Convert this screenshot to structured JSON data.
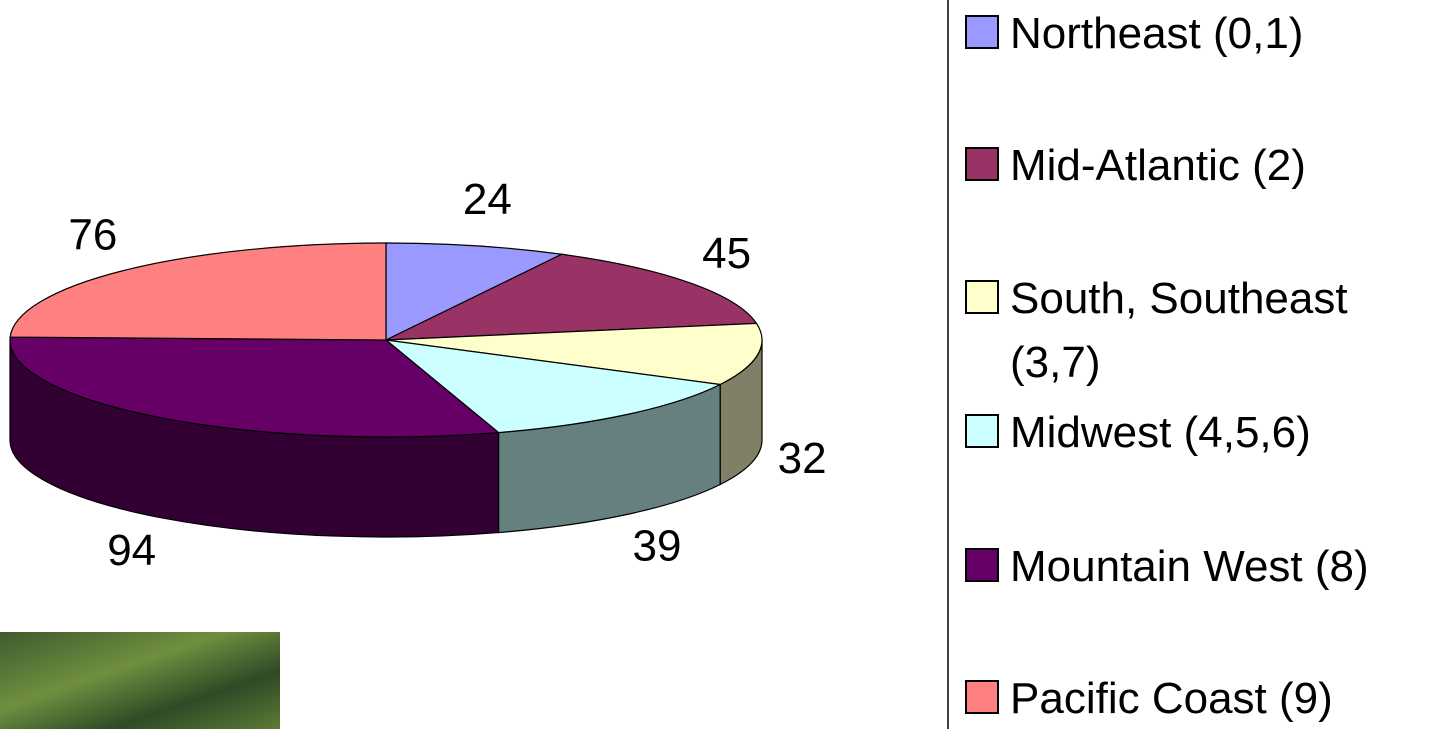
{
  "chart_data": {
    "type": "pie3d",
    "categories": [
      "Northeast (0,1)",
      "Mid-Atlantic (2)",
      "South, Southeast (3,7)",
      "Midwest (4,5,6)",
      "Mountain West (8)",
      "Pacific Coast (9)"
    ],
    "values": [
      24,
      45,
      32,
      39,
      94,
      76
    ],
    "colors": [
      "#9999ff",
      "#993366",
      "#ffffcc",
      "#ccffff",
      "#660066",
      "#ff8080"
    ],
    "legend": "right"
  }
}
